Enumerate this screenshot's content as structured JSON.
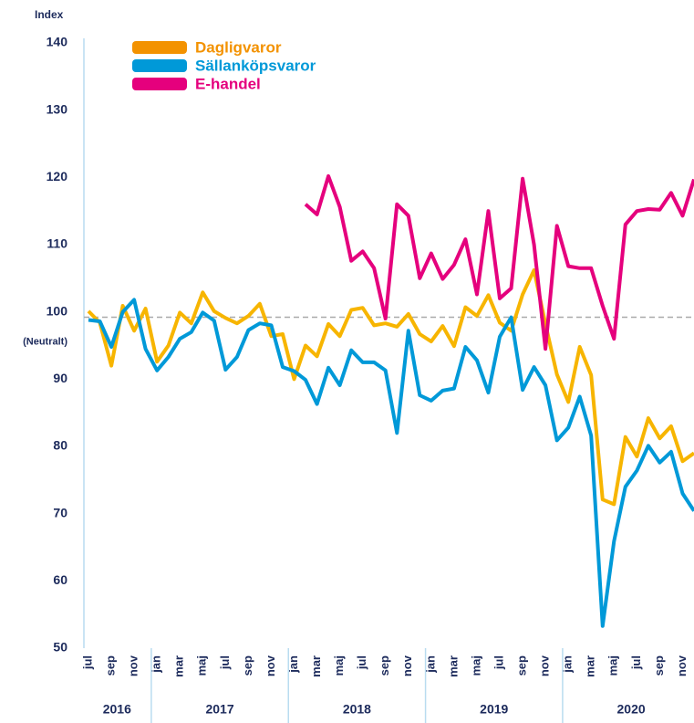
{
  "chart_data": {
    "type": "line",
    "y_label": "Index",
    "annotation": "(Neutralt)",
    "reference_line": 99.2,
    "categories": [
      "jul",
      null,
      "sep",
      null,
      "nov",
      null,
      "jan",
      null,
      "mar",
      null,
      "maj",
      null,
      "jul",
      null,
      "sep",
      null,
      "nov",
      null,
      "jan",
      null,
      "mar",
      null,
      "maj",
      null,
      "jul",
      null,
      "sep",
      null,
      "nov",
      null,
      "jan",
      null,
      "mar",
      null,
      "maj",
      null,
      "jul",
      null,
      "sep",
      null,
      "nov",
      null,
      "jan",
      null,
      "mar",
      null,
      "maj",
      null,
      "jul",
      null,
      "sep",
      null,
      "nov",
      null
    ],
    "years": [
      "2016",
      "2017",
      "2018",
      "2019",
      "2020"
    ],
    "series": [
      {
        "name": "Dagligvaror",
        "color": "#f7b500",
        "legend_color": "#f39200",
        "values": [
          100.1,
          98.4,
          92,
          100.9,
          97.2,
          100.5,
          92.6,
          95,
          99.9,
          98.3,
          102.9,
          100.1,
          99.1,
          98.3,
          99.4,
          101.2,
          96.4,
          96.7,
          90,
          95,
          93.4,
          98.2,
          96.4,
          100.3,
          100.6,
          98,
          98.3,
          97.8,
          99.7,
          96.7,
          95.6,
          97.9,
          94.9,
          100.7,
          99.4,
          102.5,
          98.4,
          97.2,
          102.6,
          106.2,
          98.2,
          90.7,
          86.6,
          94.8,
          90.6,
          72.1,
          71.4,
          81.4,
          78.5,
          84.2,
          81.2,
          83,
          77.8,
          79
        ]
      },
      {
        "name": "Sällanköpsvaror",
        "color": "#0099d8",
        "legend_color": "#0099d8",
        "values": [
          98.8,
          98.6,
          94.8,
          100,
          101.8,
          94.5,
          91.3,
          93.3,
          96,
          97,
          99.9,
          98.7,
          91.4,
          93.3,
          97.3,
          98.3,
          98,
          91.8,
          91.2,
          89.9,
          86.3,
          91.7,
          89.1,
          94.3,
          92.5,
          92.5,
          91.3,
          82,
          97.2,
          87.6,
          86.8,
          88.3,
          88.6,
          94.8,
          92.8,
          88,
          96.3,
          99.2,
          88.4,
          91.8,
          89.1,
          80.9,
          82.8,
          87.4,
          81.6,
          53.3,
          65.9,
          74,
          76.4,
          80.1,
          77.6,
          79.2,
          73,
          70.4
        ]
      },
      {
        "name": "E-handel",
        "color": "#e5007d",
        "legend_color": "#e5007d",
        "values": [
          null,
          null,
          null,
          null,
          null,
          null,
          null,
          null,
          null,
          null,
          null,
          null,
          null,
          null,
          null,
          null,
          null,
          null,
          null,
          116,
          114.5,
          120.2,
          115.6,
          107.6,
          109,
          106.5,
          99,
          116,
          114.3,
          105,
          108.7,
          104.9,
          107,
          110.8,
          102.6,
          115,
          102,
          103.5,
          119.8,
          110,
          94.5,
          112.8,
          106.8,
          106.5,
          106.5,
          100.9,
          96,
          113,
          115,
          115.3,
          115.2,
          117.7,
          114.3,
          119.7
        ]
      }
    ],
    "ylim": [
      50,
      140
    ],
    "yticks": [
      50,
      60,
      70,
      80,
      90,
      100,
      110,
      120,
      130,
      140
    ]
  }
}
